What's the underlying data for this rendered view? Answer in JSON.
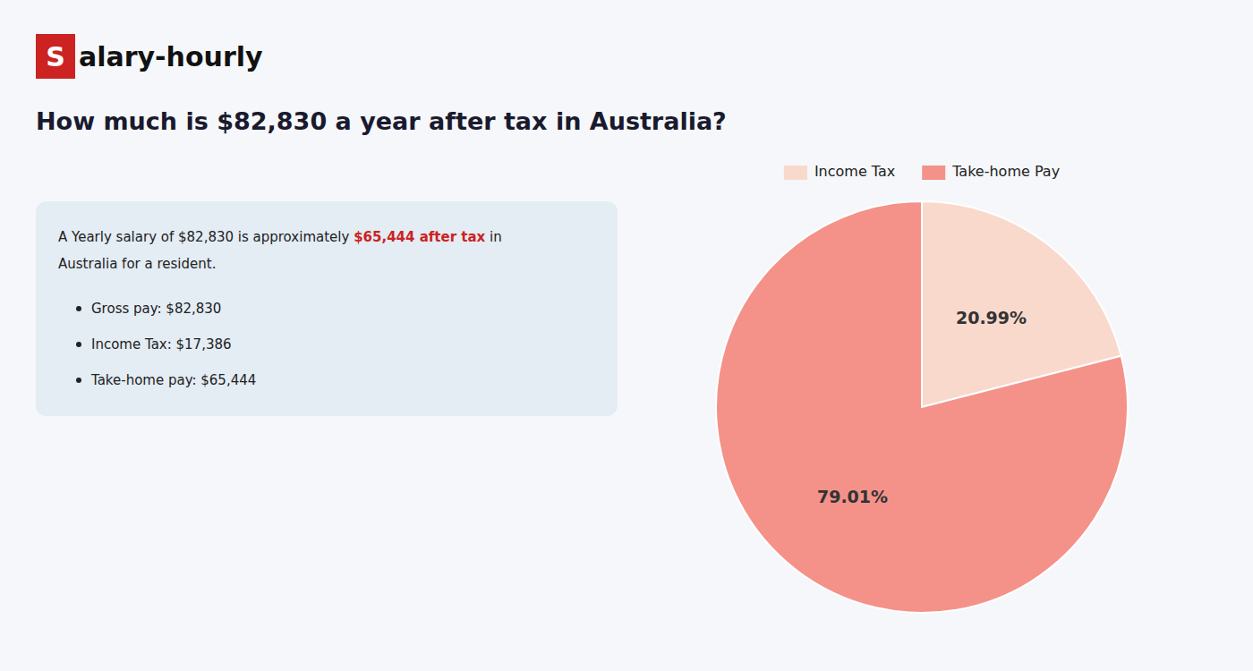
{
  "chart_data": {
    "type": "pie",
    "title": "How much is $82,830 a year after tax in Australia?",
    "categories": [
      "Income Tax",
      "Take-home Pay"
    ],
    "values": [
      20.99,
      79.01
    ],
    "value_labels": [
      "20.99%",
      "79.01%"
    ],
    "colors": [
      "#f9d9cc",
      "#f4928a"
    ],
    "data_labels": true,
    "legend": "top",
    "annotations": [
      "S",
      "alary-hourly",
      "A Yearly salary of $82,830 is approximately ",
      "$65,444 after tax",
      " in",
      "Australia for a resident.",
      "Gross pay: $82,830",
      "Income Tax: $17,386",
      "Take-home pay: $65,444"
    ]
  }
}
